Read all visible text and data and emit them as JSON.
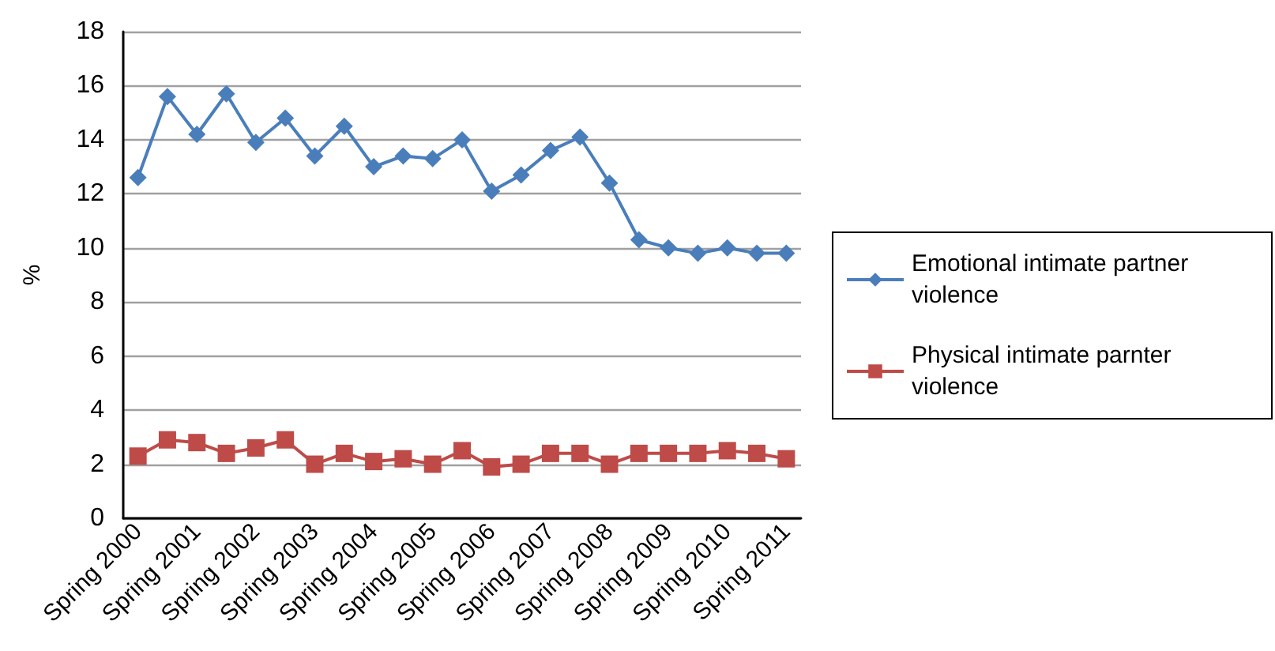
{
  "chart_data": {
    "type": "line",
    "ylabel": "%",
    "categories": [
      "Spring 2000",
      null,
      "Spring 2001",
      null,
      "Spring 2002",
      null,
      "Spring 2003",
      null,
      "Spring 2004",
      null,
      "Spring 2005",
      null,
      "Spring 2006",
      null,
      "Spring 2007",
      null,
      "Spring 2008",
      null,
      "Spring 2009",
      null,
      "Spring 2010",
      null,
      "Spring 2011"
    ],
    "series": [
      {
        "name": "Emotional intimate partner violence",
        "color": "#4a7ebb",
        "marker": "diamond",
        "values": [
          12.6,
          15.6,
          14.2,
          15.7,
          13.9,
          14.8,
          13.4,
          14.5,
          13.0,
          13.4,
          13.3,
          14.0,
          12.1,
          12.7,
          13.6,
          14.1,
          12.4,
          10.3,
          10.0,
          9.8,
          10.0,
          9.8,
          9.8
        ]
      },
      {
        "name": "Physical intimate parnter violence",
        "color": "#be4b48",
        "marker": "square",
        "values": [
          2.3,
          2.9,
          2.8,
          2.4,
          2.6,
          2.9,
          2.0,
          2.4,
          2.1,
          2.2,
          2.0,
          2.5,
          1.9,
          2.0,
          2.4,
          2.4,
          2.0,
          2.4,
          2.4,
          2.4,
          2.5,
          2.4,
          2.2
        ]
      }
    ],
    "ylim": [
      0,
      18
    ],
    "yticks": [
      0,
      2,
      4,
      6,
      8,
      10,
      12,
      14,
      16,
      18
    ],
    "grid": "y",
    "legend": "right",
    "line_style": "solid"
  }
}
